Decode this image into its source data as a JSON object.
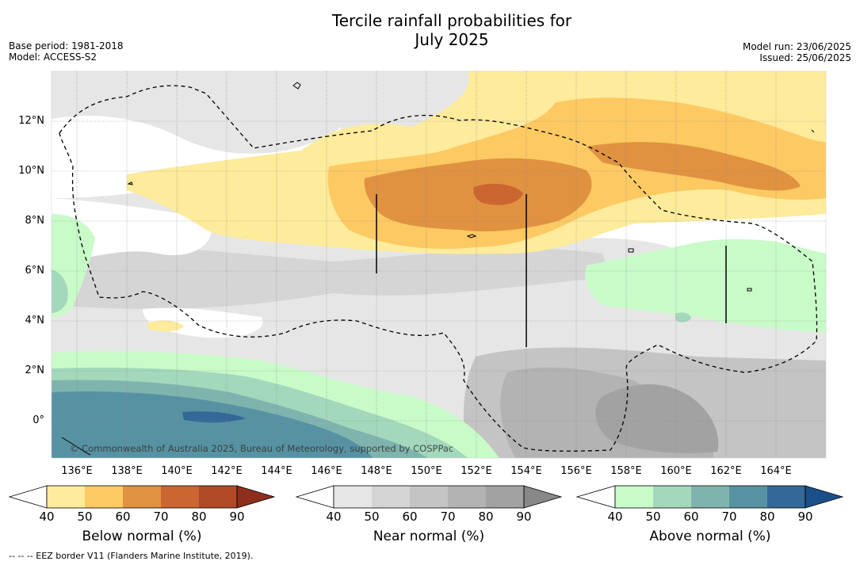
{
  "title": {
    "line1": "Tercile rainfall probabilities for",
    "line2": "July 2025"
  },
  "meta_left": {
    "base_period": "Base period: 1981-2018",
    "model": "Model: ACCESS-S2"
  },
  "meta_right": {
    "model_run": "Model run: 23/06/2025",
    "issued": "Issued: 25/06/2025"
  },
  "map": {
    "lat_labels": [
      "12°N",
      "10°N",
      "8°N",
      "6°N",
      "4°N",
      "2°N",
      "0°"
    ],
    "lon_labels": [
      "136°E",
      "138°E",
      "140°E",
      "142°E",
      "144°E",
      "146°E",
      "148°E",
      "150°E",
      "152°E",
      "154°E",
      "156°E",
      "158°E",
      "160°E",
      "162°E",
      "164°E"
    ],
    "copyright": "© Commonwealth of Australia 2025, Bureau of Meteorology, supported by COSPPac"
  },
  "colorbars": [
    {
      "title": "Below normal (%)",
      "ticks": [
        "40",
        "50",
        "60",
        "70",
        "80",
        "90"
      ],
      "colors": [
        "#ffffff",
        "#feeb9b",
        "#fdc962",
        "#e09240",
        "#cc6630",
        "#b04a26",
        "#8e2e1c"
      ]
    },
    {
      "title": "Near normal (%)",
      "ticks": [
        "40",
        "50",
        "60",
        "70",
        "80",
        "90"
      ],
      "colors": [
        "#ffffff",
        "#e6e6e6",
        "#d5d5d5",
        "#c4c4c4",
        "#b3b3b3",
        "#a2a2a2",
        "#888888"
      ]
    },
    {
      "title": "Above normal (%)",
      "ticks": [
        "40",
        "50",
        "60",
        "70",
        "80",
        "90"
      ],
      "colors": [
        "#ffffff",
        "#c8fbc8",
        "#a3d8bc",
        "#7fb4ae",
        "#5792a3",
        "#336898",
        "#1b4f8a"
      ]
    }
  ],
  "footer": "--  --  -- EEZ border V11 (Flanders Marine Institute, 2019)."
}
